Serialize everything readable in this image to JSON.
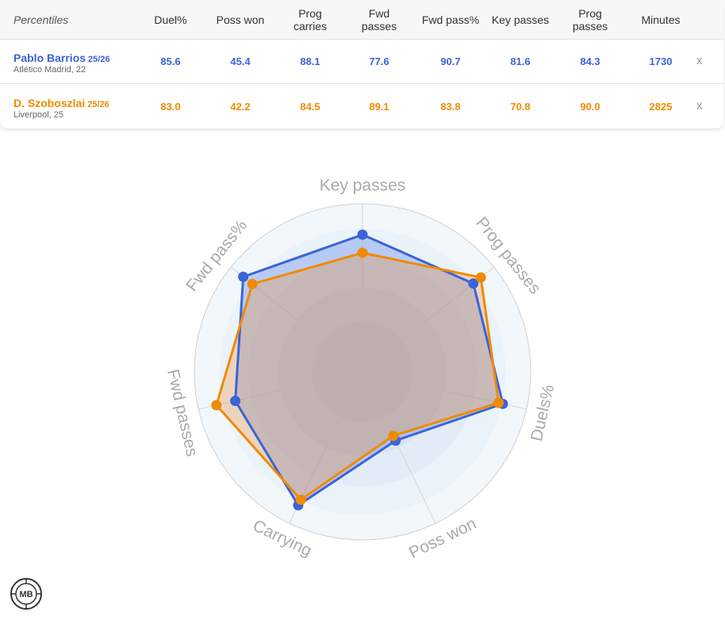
{
  "header": {
    "label": "Percentiles",
    "columns": [
      {
        "l1": "Duel%",
        "l2": ""
      },
      {
        "l1": "Poss won",
        "l2": ""
      },
      {
        "l1": "Prog",
        "l2": "carries"
      },
      {
        "l1": "Fwd",
        "l2": "passes"
      },
      {
        "l1": "Fwd pass%",
        "l2": ""
      },
      {
        "l1": "Key passes",
        "l2": ""
      },
      {
        "l1": "Prog",
        "l2": "passes"
      },
      {
        "l1": "Minutes",
        "l2": ""
      }
    ]
  },
  "players": [
    {
      "name": "Pablo Barrios",
      "season": "25/26",
      "sub": "Atlético Madrid, 22",
      "values": [
        "85.6",
        "45.4",
        "88.1",
        "77.6",
        "90.7",
        "81.6",
        "84.3",
        "1730"
      ],
      "remove": "x",
      "color": "#3a64d8"
    },
    {
      "name": "D. Szoboszlai",
      "season": "25/26",
      "sub": "Liverpool, 25",
      "values": [
        "83.0",
        "42.2",
        "84.5",
        "89.1",
        "83.8",
        "70.8",
        "90.0",
        "2825"
      ],
      "remove": "x",
      "color": "#f08a00"
    }
  ],
  "chart_data": {
    "type": "radar",
    "axes": [
      "Key passes",
      "Prog passes",
      "Duels%",
      "Poss won",
      "Carrying",
      "Fwd passes",
      "Fwd pass%"
    ],
    "rmax": 100,
    "series": [
      {
        "name": "Pablo Barrios",
        "color": "#3a64d8",
        "values": [
          81.6,
          84.3,
          85.6,
          45.4,
          88.1,
          77.6,
          90.7
        ]
      },
      {
        "name": "D. Szoboszlai",
        "color": "#f08a00",
        "values": [
          70.8,
          90.0,
          83.0,
          42.2,
          84.5,
          89.1,
          83.8
        ]
      }
    ]
  },
  "logo": {
    "text": "MB"
  }
}
